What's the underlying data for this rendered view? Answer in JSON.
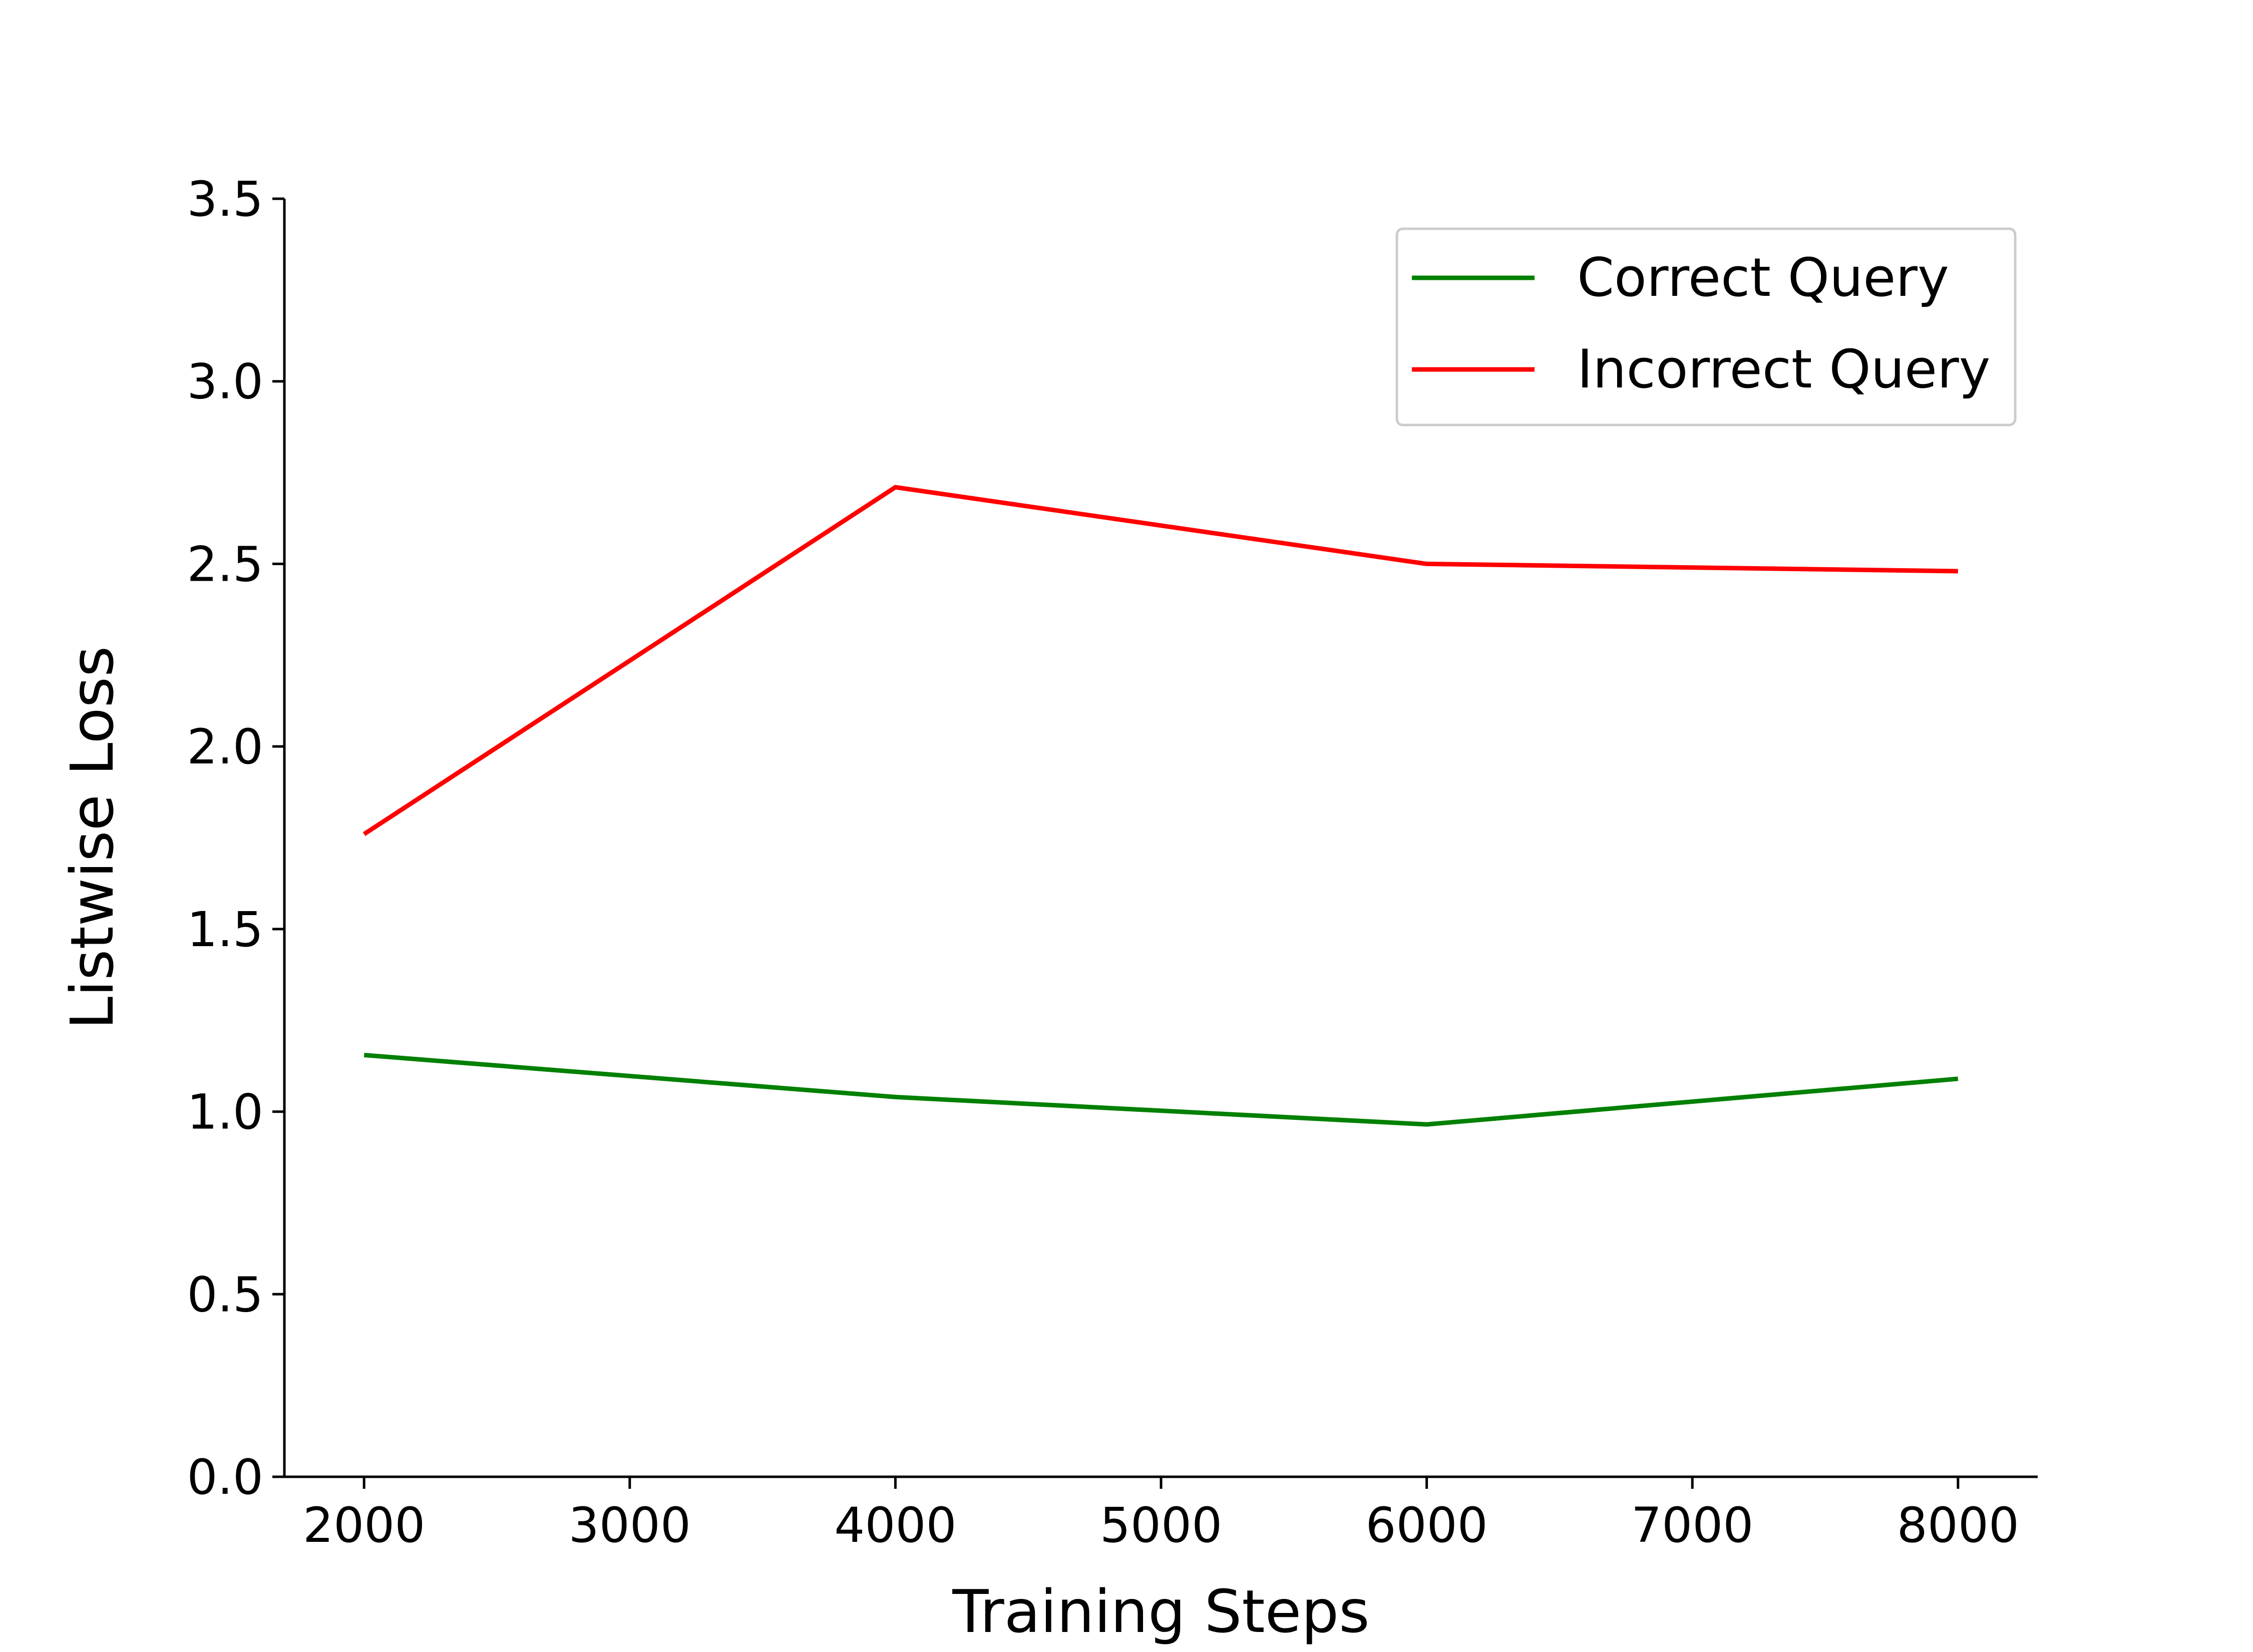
{
  "chart_data": {
    "type": "line",
    "title": "",
    "xlabel": "Training Steps",
    "ylabel": "Listwise Loss",
    "xlim": [
      1700,
      8300
    ],
    "ylim": [
      0,
      3.5
    ],
    "x": [
      2000,
      4000,
      6000,
      8000
    ],
    "xticks": [
      "2000",
      "3000",
      "4000",
      "5000",
      "6000",
      "7000",
      "8000"
    ],
    "yticks": [
      "0.0",
      "0.5",
      "1.0",
      "1.5",
      "2.0",
      "2.5",
      "3.0",
      "3.5"
    ],
    "grid": false,
    "legend_position": "top-right",
    "series": [
      {
        "name": "Correct Query",
        "color": "#008000",
        "values": [
          1.155,
          1.04,
          0.965,
          1.09
        ]
      },
      {
        "name": "Incorrect Query",
        "color": "#ff0000",
        "values": [
          1.76,
          2.71,
          2.5,
          2.48
        ]
      }
    ]
  }
}
